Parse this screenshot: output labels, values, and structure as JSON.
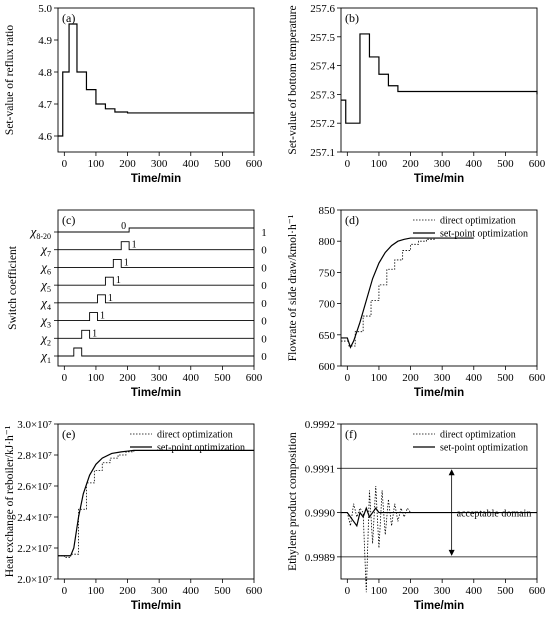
{
  "chart_data": [
    {
      "id": "a",
      "type": "line",
      "panel_label": "(a)",
      "xlabel": "Time/min",
      "ylabel": "Set-value of reflux ratio",
      "xlim": [
        -20,
        600
      ],
      "ylim": [
        4.55,
        5.0
      ],
      "xticks": [
        0,
        100,
        200,
        300,
        400,
        500,
        600
      ],
      "yticks": [
        4.6,
        4.7,
        4.8,
        4.9,
        5.0
      ],
      "ytick_labels": [
        "4.6",
        "4.7",
        "4.8",
        "4.9",
        "5.0"
      ],
      "series": [
        {
          "style": "solid",
          "step": true,
          "x": [
            -20,
            -5,
            15,
            40,
            70,
            100,
            130,
            160,
            200,
            600
          ],
          "y": [
            4.6,
            4.8,
            4.95,
            4.8,
            4.745,
            4.7,
            4.685,
            4.675,
            4.672,
            4.672
          ]
        }
      ]
    },
    {
      "id": "b",
      "type": "line",
      "panel_label": "(b)",
      "xlabel": "Time/min",
      "ylabel": "Set-value of bottom temperature",
      "xlim": [
        -20,
        600
      ],
      "ylim": [
        257.1,
        257.6
      ],
      "xticks": [
        0,
        100,
        200,
        300,
        400,
        500,
        600
      ],
      "yticks": [
        257.1,
        257.2,
        257.3,
        257.4,
        257.5,
        257.6
      ],
      "ytick_labels": [
        "257.1",
        "257.2",
        "257.3",
        "257.4",
        "257.5",
        "257.6"
      ],
      "series": [
        {
          "style": "solid",
          "step": true,
          "x": [
            -20,
            -5,
            20,
            40,
            70,
            100,
            130,
            160,
            600
          ],
          "y": [
            257.28,
            257.2,
            257.2,
            257.51,
            257.43,
            257.37,
            257.33,
            257.31,
            257.3
          ]
        }
      ]
    },
    {
      "id": "c",
      "type": "line",
      "panel_label": "(c)",
      "xlabel": "Time/min",
      "ylabel": "Switch coefficient",
      "xlim": [
        -20,
        600
      ],
      "xticks": [
        0,
        100,
        200,
        300,
        400,
        500,
        600
      ],
      "rows": [
        {
          "label": "χ8-20",
          "t0": 205,
          "right": "1",
          "zero_mark": "0"
        },
        {
          "label": "χ7",
          "t0": 180,
          "right": "0",
          "mark": "1"
        },
        {
          "label": "χ6",
          "t0": 155,
          "right": "0",
          "mark": "1"
        },
        {
          "label": "χ5",
          "t0": 130,
          "right": "0",
          "mark": "1"
        },
        {
          "label": "χ4",
          "t0": 105,
          "right": "0",
          "mark": "1"
        },
        {
          "label": "χ3",
          "t0": 80,
          "right": "0",
          "mark": "1"
        },
        {
          "label": "χ2",
          "t0": 55,
          "right": "0",
          "mark": "1"
        },
        {
          "label": "χ1",
          "t0": 30,
          "right": "0",
          "mark": ""
        }
      ]
    },
    {
      "id": "d",
      "type": "line",
      "panel_label": "(d)",
      "xlabel": "Time/min",
      "ylabel": "Flowrate of side draw/kmol·h⁻¹",
      "xlim": [
        -20,
        600
      ],
      "ylim": [
        600,
        850
      ],
      "xticks": [
        0,
        100,
        200,
        300,
        400,
        500,
        600
      ],
      "yticks": [
        600,
        650,
        700,
        750,
        800,
        850
      ],
      "ytick_labels": [
        "600",
        "650",
        "700",
        "750",
        "800",
        "850"
      ],
      "legend": [
        "direct optimization",
        "set-point optimization"
      ],
      "series": [
        {
          "name": "direct optimization",
          "style": "dotted",
          "step": true,
          "x": [
            -20,
            5,
            25,
            50,
            75,
            100,
            125,
            150,
            175,
            200,
            225,
            250,
            275,
            300,
            400
          ],
          "y": [
            640,
            632,
            655,
            680,
            705,
            730,
            755,
            770,
            785,
            795,
            800,
            803,
            805,
            805,
            805
          ]
        },
        {
          "name": "set-point optimization",
          "style": "solid",
          "step": false,
          "x": [
            -20,
            0,
            10,
            20,
            40,
            60,
            80,
            100,
            120,
            140,
            160,
            180,
            200,
            230,
            260,
            300,
            400
          ],
          "y": [
            645,
            645,
            630,
            640,
            670,
            705,
            740,
            765,
            782,
            793,
            800,
            803,
            805,
            805,
            805,
            805,
            805
          ]
        }
      ]
    },
    {
      "id": "e",
      "type": "line",
      "panel_label": "(e)",
      "xlabel": "Time/min",
      "ylabel": "Heat exchange of reboiler/kJ·h⁻¹",
      "xlim": [
        -20,
        600
      ],
      "ylim": [
        20000000.0,
        30000000.0
      ],
      "xticks": [
        0,
        100,
        200,
        300,
        400,
        500,
        600
      ],
      "yticks": [
        20000000.0,
        22000000.0,
        24000000.0,
        26000000.0,
        28000000.0,
        30000000.0
      ],
      "ytick_labels": [
        "2.0×10⁷",
        "2.2×10⁷",
        "2.4×10⁷",
        "2.6×10⁷",
        "2.8×10⁷",
        "3.0×10⁷"
      ],
      "legend": [
        "direct optimization",
        "set-point optimization"
      ],
      "series": [
        {
          "name": "direct optimization",
          "style": "dotted",
          "step": true,
          "x": [
            -20,
            0,
            20,
            45,
            70,
            95,
            120,
            145,
            170,
            195,
            220,
            250,
            600
          ],
          "y": [
            21500000.0,
            21400000.0,
            21600000.0,
            24500000.0,
            26200000.0,
            27000000.0,
            27500000.0,
            27800000.0,
            28000000.0,
            28200000.0,
            28300000.0,
            28300000.0,
            28300000.0
          ]
        },
        {
          "name": "set-point optimization",
          "style": "solid",
          "step": false,
          "x": [
            -20,
            0,
            20,
            30,
            45,
            60,
            80,
            100,
            120,
            150,
            180,
            220,
            260,
            600
          ],
          "y": [
            21500000.0,
            21500000.0,
            21500000.0,
            22000000.0,
            24000000.0,
            25500000.0,
            26700000.0,
            27400000.0,
            27800000.0,
            28100000.0,
            28200000.0,
            28300000.0,
            28300000.0,
            28300000.0
          ]
        }
      ]
    },
    {
      "id": "f",
      "type": "line",
      "panel_label": "(f)",
      "xlabel": "Time/min",
      "ylabel": "Ethylene product composition",
      "xlim": [
        -20,
        600
      ],
      "ylim": [
        0.99885,
        0.9992
      ],
      "xticks": [
        0,
        100,
        200,
        300,
        400,
        500,
        600
      ],
      "yticks": [
        0.9989,
        0.999,
        0.9991,
        0.9992
      ],
      "ytick_labels": [
        "0.9989",
        "0.9990",
        "0.9991",
        "0.9992"
      ],
      "legend": [
        "direct optimization",
        "set-point optimization"
      ],
      "annotation": "acceptable domain",
      "bounds": [
        0.9989,
        0.9991
      ],
      "series": [
        {
          "name": "direct optimization",
          "style": "dotted",
          "step": false,
          "x": [
            -20,
            0,
            10,
            20,
            30,
            40,
            50,
            60,
            70,
            80,
            90,
            100,
            110,
            120,
            130,
            140,
            150,
            160,
            170,
            180,
            190,
            200,
            220,
            250,
            280,
            320
          ],
          "y": [
            0.999,
            0.999,
            0.99897,
            0.99902,
            0.99899,
            0.99901,
            0.999,
            0.99882,
            0.99905,
            0.99893,
            0.99906,
            0.99892,
            0.99905,
            0.99895,
            0.99903,
            0.99897,
            0.99902,
            0.99898,
            0.99901,
            0.99899,
            0.99901,
            0.999,
            0.999,
            0.999,
            0.999,
            0.999
          ]
        },
        {
          "name": "set-point optimization",
          "style": "solid",
          "step": false,
          "x": [
            -20,
            0,
            10,
            20,
            30,
            40,
            50,
            60,
            70,
            80,
            90,
            100,
            120,
            140,
            160,
            200,
            600
          ],
          "y": [
            0.999,
            0.999,
            0.99899,
            0.99898,
            0.99897,
            0.999,
            0.99899,
            0.99901,
            0.99899,
            0.999,
            0.99901,
            0.999,
            0.999,
            0.999,
            0.999,
            0.999,
            0.999
          ]
        }
      ]
    }
  ]
}
